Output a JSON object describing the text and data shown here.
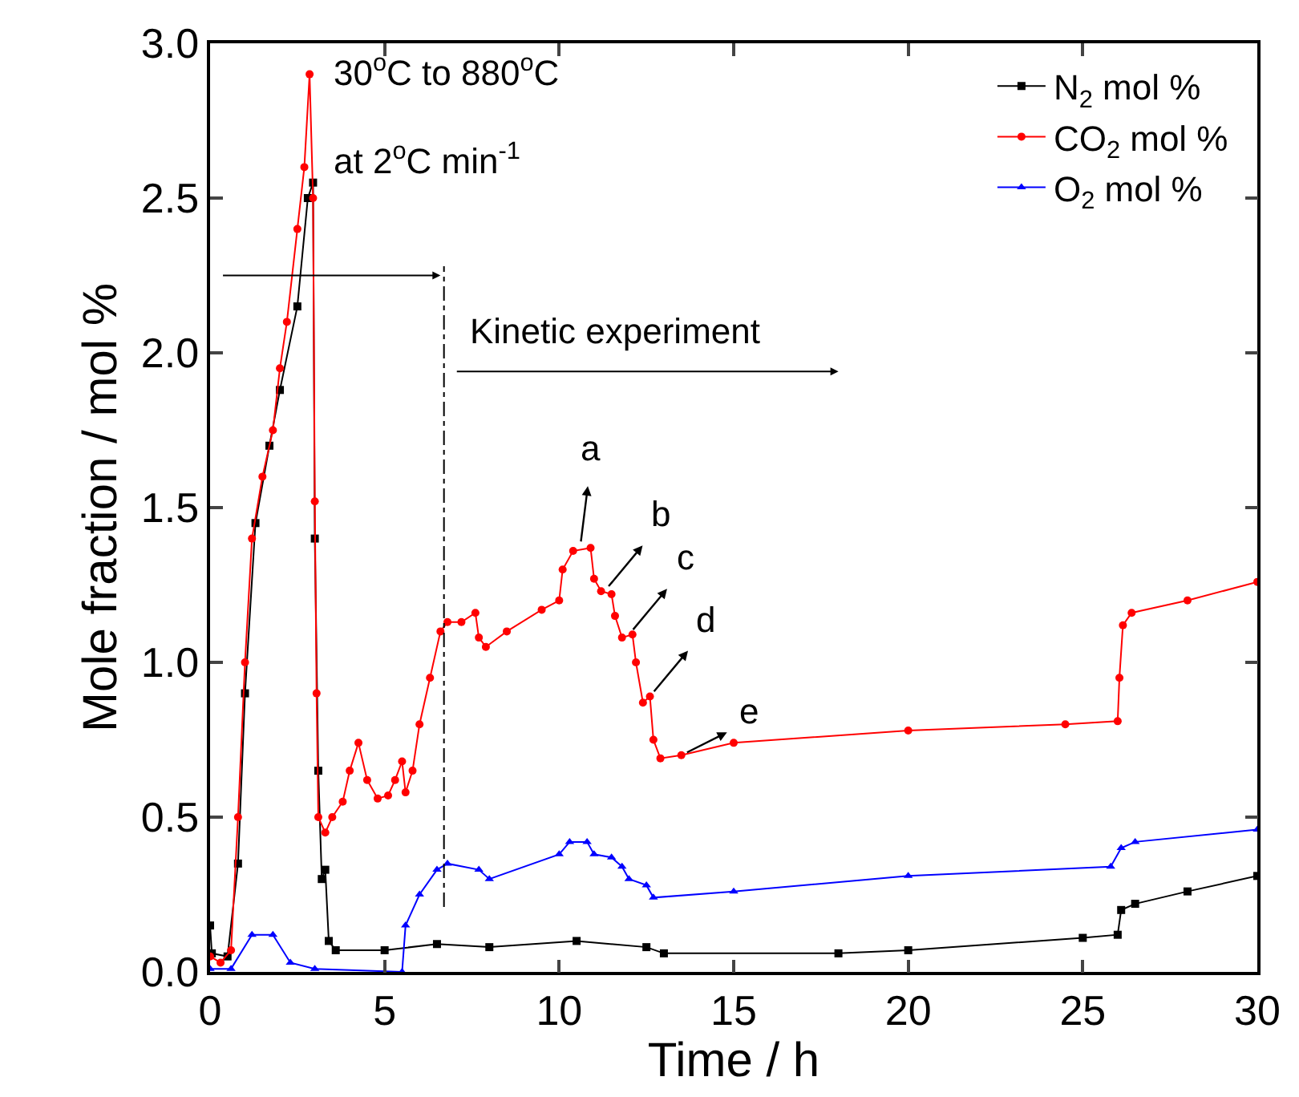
{
  "chart_data": {
    "type": "line",
    "xlabel": "Time / h",
    "ylabel": "Mole fraction / mol %",
    "xlim": [
      0,
      30
    ],
    "xticks": [
      0,
      5,
      10,
      15,
      20,
      25,
      30
    ],
    "ylim": [
      0,
      3
    ],
    "yticks": [
      {
        "value": 0,
        "label": "0.0"
      },
      {
        "value": 0.5,
        "label": "0.5"
      },
      {
        "value": 1,
        "label": "1.0"
      },
      {
        "value": 1.5,
        "label": "1.5"
      },
      {
        "value": 2,
        "label": "2.0"
      },
      {
        "value": 2.5,
        "label": "2.5"
      },
      {
        "value": 3,
        "label": "3.0"
      }
    ],
    "grid": false,
    "legend": "top right",
    "series": [
      {
        "name": "N$_{2}$ mol %",
        "color": "#000000",
        "marker": "square",
        "x": [
          0,
          0.05,
          0.5,
          0.8,
          1.0,
          1.3,
          1.7,
          2.0,
          2.5,
          2.8,
          2.95,
          3.0,
          3.1,
          3.2,
          3.3,
          3.4,
          3.6,
          5,
          6.5,
          8,
          10.5,
          12.5,
          13,
          18,
          20,
          25,
          26,
          26.1,
          26.5,
          28,
          30
        ],
        "values": [
          0.15,
          0.06,
          0.05,
          0.35,
          0.9,
          1.45,
          1.7,
          1.88,
          2.15,
          2.5,
          2.55,
          1.4,
          0.65,
          0.3,
          0.33,
          0.1,
          0.07,
          0.07,
          0.09,
          0.08,
          0.1,
          0.08,
          0.06,
          0.06,
          0.07,
          0.11,
          0.12,
          0.2,
          0.22,
          0.26,
          0.31
        ]
      },
      {
        "name": "CO$_{2}$ mol %",
        "color": "#ff0000",
        "marker": "circle",
        "x": [
          0,
          0.3,
          0.6,
          0.8,
          1.0,
          1.2,
          1.5,
          1.8,
          2.0,
          2.2,
          2.5,
          2.7,
          2.85,
          2.95,
          3.0,
          3.05,
          3.1,
          3.3,
          3.5,
          3.8,
          4.0,
          4.25,
          4.5,
          4.8,
          5.1,
          5.3,
          5.5,
          5.6,
          5.8,
          6.0,
          6.3,
          6.6,
          6.8,
          7.2,
          7.6,
          7.7,
          7.9,
          8.5,
          9.5,
          10.0,
          10.1,
          10.4,
          10.9,
          11.0,
          11.2,
          11.5,
          11.6,
          11.8,
          12.1,
          12.2,
          12.4,
          12.6,
          12.7,
          12.9,
          13.5,
          15,
          20,
          24.5,
          26.0,
          26.05,
          26.15,
          26.4,
          28,
          30
        ],
        "values": [
          0.05,
          0.03,
          0.07,
          0.5,
          1.0,
          1.4,
          1.6,
          1.75,
          1.95,
          2.1,
          2.4,
          2.6,
          2.9,
          2.5,
          1.52,
          0.9,
          0.5,
          0.45,
          0.5,
          0.55,
          0.65,
          0.74,
          0.62,
          0.56,
          0.57,
          0.62,
          0.68,
          0.58,
          0.65,
          0.8,
          0.95,
          1.1,
          1.13,
          1.13,
          1.16,
          1.08,
          1.05,
          1.1,
          1.17,
          1.2,
          1.3,
          1.36,
          1.37,
          1.27,
          1.23,
          1.22,
          1.15,
          1.08,
          1.09,
          1.0,
          0.87,
          0.89,
          0.75,
          0.69,
          0.7,
          0.74,
          0.78,
          0.8,
          0.81,
          0.95,
          1.12,
          1.16,
          1.2,
          1.26
        ]
      },
      {
        "name": "O$_{2}$ mol %",
        "color": "#0000ff",
        "marker": "triangle",
        "x": [
          0,
          0.6,
          1.2,
          1.8,
          2.3,
          3,
          5.5,
          5.6,
          6,
          6.5,
          6.8,
          7.7,
          8,
          10,
          10.3,
          10.8,
          11,
          11.5,
          11.8,
          12.0,
          12.5,
          12.7,
          15,
          20,
          25.8,
          26.1,
          26.5,
          30
        ],
        "values": [
          0.01,
          0.01,
          0.12,
          0.12,
          0.03,
          0.01,
          0.0,
          0.15,
          0.25,
          0.33,
          0.35,
          0.33,
          0.3,
          0.38,
          0.42,
          0.42,
          0.38,
          0.37,
          0.34,
          0.3,
          0.28,
          0.24,
          0.26,
          0.31,
          0.34,
          0.4,
          0.42,
          0.46
        ]
      }
    ],
    "ref_lines": [
      {
        "axis": "x",
        "value": 6.7,
        "color": "#000000",
        "line_style": "dashdot"
      }
    ],
    "annotations": [
      "30$^{o}$C to 880$^{o}$C",
      "at 2$^{o}$C min$^{-1}$",
      "Kinetic experiment",
      {
        "text": "a",
        "x": 10.6,
        "y": 1.37
      },
      {
        "text": "b",
        "x": 11.3,
        "y": 1.23
      },
      {
        "text": "c",
        "x": 12.0,
        "y": 1.09
      },
      {
        "text": "d",
        "x": 12.6,
        "y": 0.89
      },
      {
        "text": "e",
        "x": 13.5,
        "y": 0.7
      }
    ]
  }
}
